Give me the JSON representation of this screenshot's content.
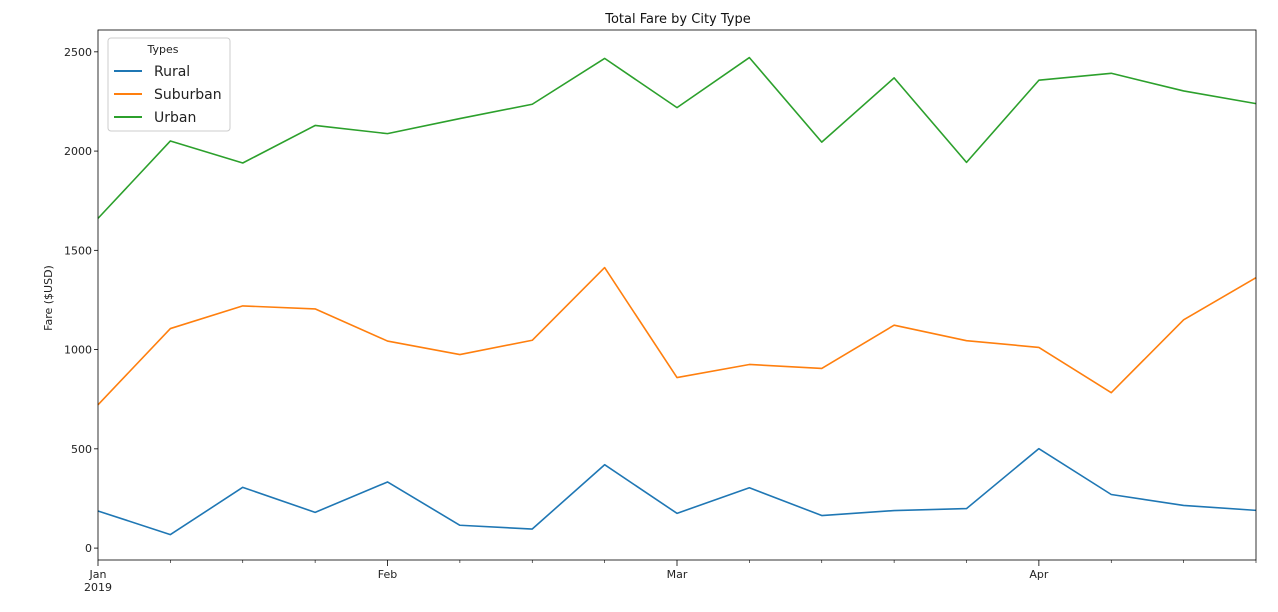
{
  "chart_data": {
    "type": "line",
    "title": "Total Fare by City Type",
    "xlabel": "",
    "ylabel": "Fare ($USD)",
    "x": [
      "2019-01-06",
      "2019-01-13",
      "2019-01-20",
      "2019-01-27",
      "2019-02-03",
      "2019-02-10",
      "2019-02-17",
      "2019-02-24",
      "2019-03-03",
      "2019-03-10",
      "2019-03-17",
      "2019-03-24",
      "2019-03-31",
      "2019-04-07",
      "2019-04-14",
      "2019-04-21",
      "2019-04-28"
    ],
    "x_range": [
      "2019-01-06",
      "2019-04-28"
    ],
    "ylim": [
      -60,
      2610
    ],
    "y_ticks": [
      0,
      500,
      1000,
      1500,
      2000,
      2500
    ],
    "x_ticks": [
      {
        "date": "2019-01-06",
        "label": "Jan",
        "sublabel": "2019"
      },
      {
        "date": "2019-02-03",
        "label": "Feb",
        "sublabel": ""
      },
      {
        "date": "2019-03-03",
        "label": "Mar",
        "sublabel": ""
      },
      {
        "date": "2019-04-07",
        "label": "Apr",
        "sublabel": ""
      }
    ],
    "minor_tick_dates": [
      "2019-01-13",
      "2019-01-20",
      "2019-01-27",
      "2019-02-10",
      "2019-02-17",
      "2019-02-24",
      "2019-03-10",
      "2019-03-17",
      "2019-03-24",
      "2019-03-31",
      "2019-04-14",
      "2019-04-21",
      "2019-04-28"
    ],
    "grid": false,
    "legend": {
      "title": "Types",
      "placement": "top-left"
    },
    "series": [
      {
        "name": "Rural",
        "color": "#1f77b4",
        "values": [
          187,
          68,
          306,
          180,
          333,
          115,
          96,
          420,
          175,
          304,
          164,
          189,
          199,
          501,
          270,
          215,
          190
        ]
      },
      {
        "name": "Suburban",
        "color": "#ff7f0e",
        "values": [
          722,
          1106,
          1220,
          1205,
          1043,
          975,
          1047,
          1413,
          859,
          925,
          905,
          1123,
          1045,
          1011,
          783,
          1150,
          1362
        ]
      },
      {
        "name": "Urban",
        "color": "#2ca02c",
        "values": [
          1661,
          2051,
          1940,
          2129,
          2088,
          2164,
          2236,
          2467,
          2219,
          2471,
          2045,
          2369,
          1943,
          2357,
          2392,
          2303,
          2239
        ]
      }
    ]
  }
}
